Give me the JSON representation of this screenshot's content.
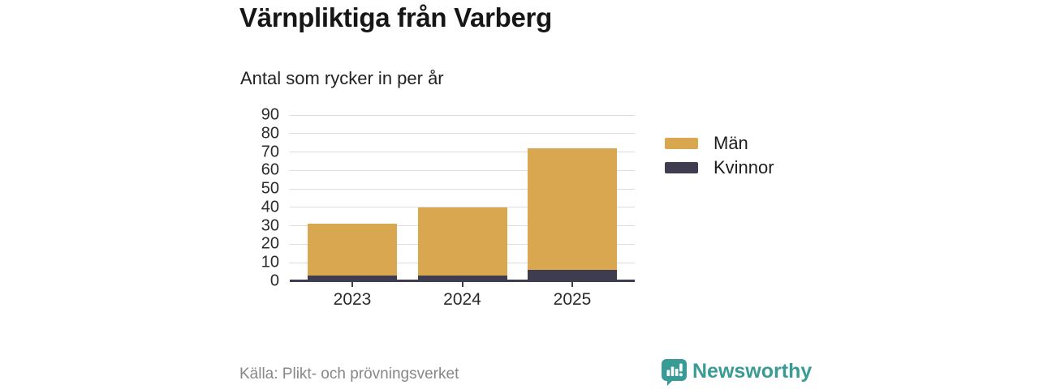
{
  "header": {
    "title": "Värnpliktiga från Varberg",
    "subtitle": "Antal som rycker in per år"
  },
  "chart_data": {
    "type": "bar",
    "stacked": true,
    "title": "Värnpliktiga från Varberg",
    "subtitle": "Antal som rycker in per år",
    "categories": [
      "2023",
      "2024",
      "2025"
    ],
    "series": [
      {
        "name": "Kvinnor",
        "color": "#3D3D4F",
        "values": [
          3,
          3,
          6
        ]
      },
      {
        "name": "Män",
        "color": "#D9A750",
        "values": [
          28,
          37,
          66
        ]
      }
    ],
    "stack_totals": [
      31,
      40,
      72
    ],
    "xlabel": "",
    "ylabel": "",
    "ylim": [
      0,
      90
    ],
    "ytick_step": 10,
    "yticks": [
      0,
      10,
      20,
      30,
      40,
      50,
      60,
      70,
      80,
      90
    ],
    "grid": true,
    "legend_position": "right",
    "legend_order": [
      "Män",
      "Kvinnor"
    ]
  },
  "legend": {
    "items": [
      {
        "label": "Män",
        "color": "#D9A750"
      },
      {
        "label": "Kvinnor",
        "color": "#3D3D4F"
      }
    ]
  },
  "footer": {
    "source": "Källa: Plikt- och prövningsverket",
    "brand": "Newsworthy"
  },
  "colors": {
    "men": "#D9A750",
    "women": "#3D3D4F",
    "grid": "#DDDDE0",
    "axis": "#3D3D4F",
    "text": "#2b2b2b",
    "muted": "#878787",
    "brand_teal": "#389B95"
  }
}
